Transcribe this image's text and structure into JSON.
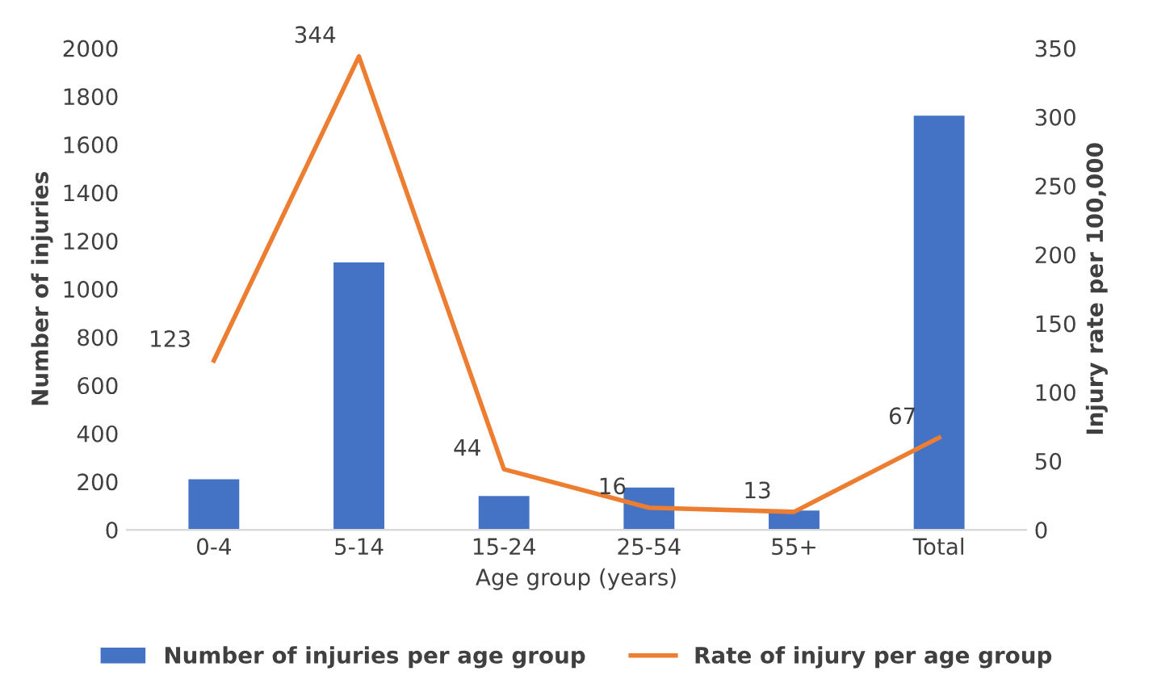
{
  "chart_data": {
    "type": "bar",
    "categories": [
      "0-4",
      "5-14",
      "15-24",
      "25-54",
      "55+",
      "Total"
    ],
    "xlabel": "Age group (years)",
    "ylabel": "Number of injuries",
    "y2label": "Injury rate per 100,000",
    "series": [
      {
        "name": "Number of injuries per age group",
        "color": "#4472c4",
        "values": [
          210,
          1110,
          140,
          175,
          80,
          1720
        ]
      },
      {
        "name": "Rate of injury per age group",
        "type": "line",
        "axis": "y2",
        "color": "#ed7d31",
        "values": [
          123,
          344,
          44,
          16,
          13,
          67
        ],
        "value_labels": [
          "123",
          "344",
          "44",
          "16",
          "13",
          "67"
        ]
      }
    ],
    "ylim": [
      0,
      2000
    ],
    "yticks": [
      0,
      200,
      400,
      600,
      800,
      1000,
      1200,
      1400,
      1600,
      1800,
      2000
    ],
    "y2lim": [
      0,
      350
    ],
    "y2ticks": [
      0,
      50,
      100,
      150,
      200,
      250,
      300,
      350
    ],
    "grid": false,
    "legend": "bottom",
    "marker": "none",
    "line_style": "solid"
  }
}
